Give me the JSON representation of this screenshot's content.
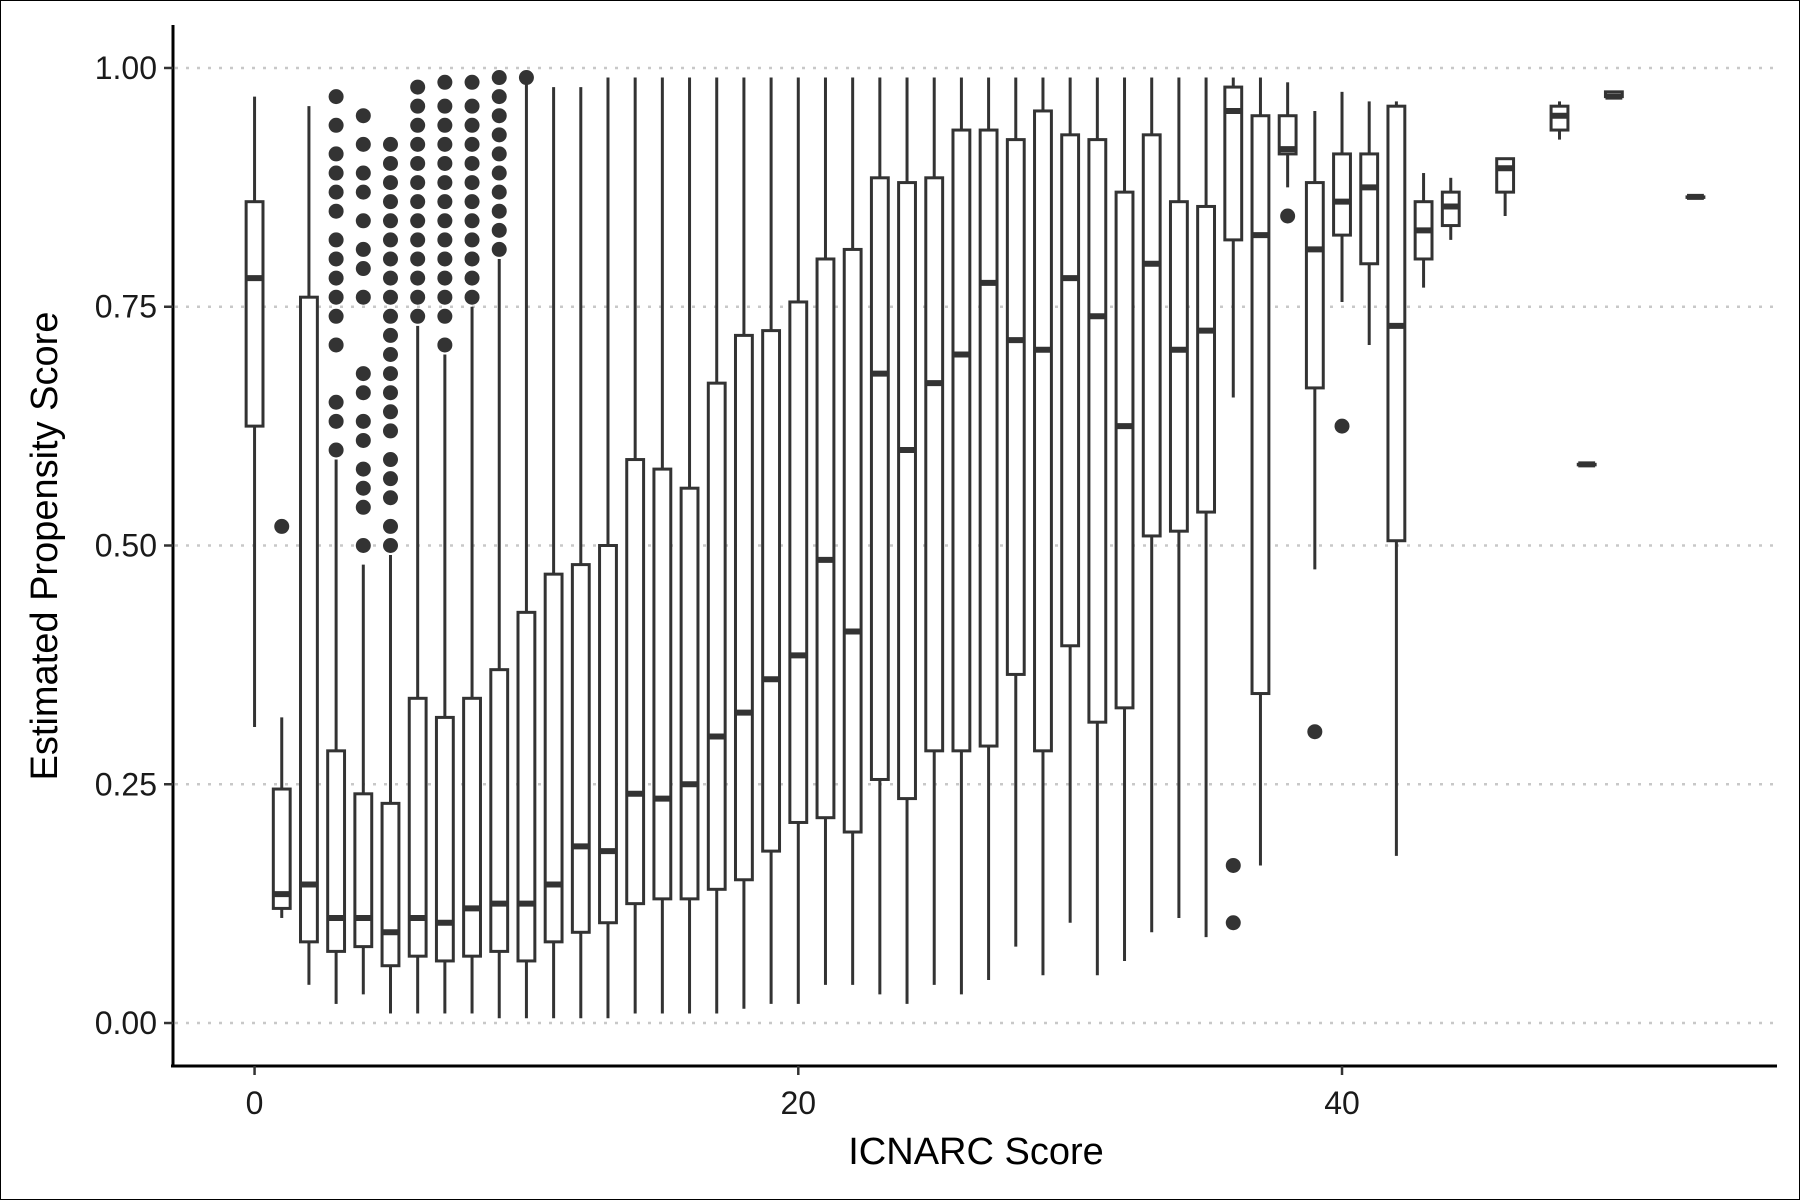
{
  "chart_data": {
    "type": "boxplot",
    "title": "",
    "xlabel": "ICNARC Score",
    "ylabel": "Estimated Propensity Score",
    "xlim": [
      -3,
      56
    ],
    "ylim": [
      -0.045,
      1.045
    ],
    "x_ticks": [
      0,
      20,
      40
    ],
    "x_tick_labels": [
      "0",
      "20",
      "40"
    ],
    "y_ticks": [
      0,
      0.25,
      0.5,
      0.75,
      1.0
    ],
    "y_tick_labels": [
      "0.00",
      "0.25",
      "0.50",
      "0.75",
      "1.00"
    ],
    "grid": "horizontal dotted major lines",
    "legend": "none",
    "box_width": 0.62,
    "colors": {
      "box_line": "#333333",
      "box_fill": "#ffffff",
      "grid": "#c8c8c8",
      "axis": "#000000"
    },
    "boxes": [
      {
        "x": 0,
        "min": 0.31,
        "q1": 0.625,
        "median": 0.78,
        "q3": 0.86,
        "max": 0.97,
        "outliers": []
      },
      {
        "x": 1,
        "min": 0.11,
        "q1": 0.12,
        "median": 0.135,
        "q3": 0.245,
        "max": 0.32,
        "outliers": [
          0.52
        ]
      },
      {
        "x": 2,
        "min": 0.04,
        "q1": 0.085,
        "median": 0.145,
        "q3": 0.76,
        "max": 0.96,
        "outliers": []
      },
      {
        "x": 3,
        "min": 0.02,
        "q1": 0.075,
        "median": 0.11,
        "q3": 0.285,
        "max": 0.59,
        "outliers": [
          0.6,
          0.63,
          0.65,
          0.71,
          0.74,
          0.76,
          0.78,
          0.8,
          0.82,
          0.85,
          0.87,
          0.89,
          0.91,
          0.94,
          0.97
        ]
      },
      {
        "x": 4,
        "min": 0.03,
        "q1": 0.08,
        "median": 0.11,
        "q3": 0.24,
        "max": 0.48,
        "outliers": [
          0.5,
          0.54,
          0.56,
          0.58,
          0.61,
          0.63,
          0.66,
          0.68,
          0.76,
          0.79,
          0.81,
          0.84,
          0.87,
          0.89,
          0.92,
          0.95
        ]
      },
      {
        "x": 5,
        "min": 0.01,
        "q1": 0.06,
        "median": 0.095,
        "q3": 0.23,
        "max": 0.49,
        "outliers": [
          0.5,
          0.52,
          0.55,
          0.57,
          0.59,
          0.62,
          0.64,
          0.66,
          0.68,
          0.7,
          0.72,
          0.74,
          0.76,
          0.78,
          0.8,
          0.82,
          0.84,
          0.86,
          0.88,
          0.9,
          0.92
        ]
      },
      {
        "x": 6,
        "min": 0.01,
        "q1": 0.07,
        "median": 0.11,
        "q3": 0.34,
        "max": 0.73,
        "outliers": [
          0.74,
          0.76,
          0.78,
          0.8,
          0.82,
          0.84,
          0.86,
          0.88,
          0.9,
          0.92,
          0.94,
          0.96,
          0.98
        ]
      },
      {
        "x": 7,
        "min": 0.01,
        "q1": 0.065,
        "median": 0.105,
        "q3": 0.32,
        "max": 0.7,
        "outliers": [
          0.71,
          0.74,
          0.76,
          0.78,
          0.8,
          0.82,
          0.84,
          0.86,
          0.88,
          0.9,
          0.92,
          0.94,
          0.96,
          0.985
        ]
      },
      {
        "x": 8,
        "min": 0.01,
        "q1": 0.07,
        "median": 0.12,
        "q3": 0.34,
        "max": 0.75,
        "outliers": [
          0.76,
          0.78,
          0.8,
          0.82,
          0.84,
          0.86,
          0.88,
          0.9,
          0.92,
          0.94,
          0.96,
          0.985
        ]
      },
      {
        "x": 9,
        "min": 0.005,
        "q1": 0.075,
        "median": 0.125,
        "q3": 0.37,
        "max": 0.8,
        "outliers": [
          0.81,
          0.83,
          0.85,
          0.87,
          0.89,
          0.91,
          0.93,
          0.95,
          0.97,
          0.99
        ]
      },
      {
        "x": 10,
        "min": 0.005,
        "q1": 0.065,
        "median": 0.125,
        "q3": 0.43,
        "max": 0.985,
        "outliers": [
          0.99
        ]
      },
      {
        "x": 11,
        "min": 0.005,
        "q1": 0.085,
        "median": 0.145,
        "q3": 0.47,
        "max": 0.98,
        "outliers": []
      },
      {
        "x": 12,
        "min": 0.005,
        "q1": 0.095,
        "median": 0.185,
        "q3": 0.48,
        "max": 0.98,
        "outliers": []
      },
      {
        "x": 13,
        "min": 0.005,
        "q1": 0.105,
        "median": 0.18,
        "q3": 0.5,
        "max": 0.99,
        "outliers": []
      },
      {
        "x": 14,
        "min": 0.01,
        "q1": 0.125,
        "median": 0.24,
        "q3": 0.59,
        "max": 0.99,
        "outliers": []
      },
      {
        "x": 15,
        "min": 0.01,
        "q1": 0.13,
        "median": 0.235,
        "q3": 0.58,
        "max": 0.99,
        "outliers": []
      },
      {
        "x": 16,
        "min": 0.01,
        "q1": 0.13,
        "median": 0.25,
        "q3": 0.56,
        "max": 0.99,
        "outliers": []
      },
      {
        "x": 17,
        "min": 0.01,
        "q1": 0.14,
        "median": 0.3,
        "q3": 0.67,
        "max": 0.99,
        "outliers": []
      },
      {
        "x": 18,
        "min": 0.015,
        "q1": 0.15,
        "median": 0.325,
        "q3": 0.72,
        "max": 0.99,
        "outliers": []
      },
      {
        "x": 19,
        "min": 0.02,
        "q1": 0.18,
        "median": 0.36,
        "q3": 0.725,
        "max": 0.99,
        "outliers": []
      },
      {
        "x": 20,
        "min": 0.02,
        "q1": 0.21,
        "median": 0.385,
        "q3": 0.755,
        "max": 0.99,
        "outliers": []
      },
      {
        "x": 21,
        "min": 0.04,
        "q1": 0.215,
        "median": 0.485,
        "q3": 0.8,
        "max": 0.99,
        "outliers": []
      },
      {
        "x": 22,
        "min": 0.04,
        "q1": 0.2,
        "median": 0.41,
        "q3": 0.81,
        "max": 0.99,
        "outliers": []
      },
      {
        "x": 23,
        "min": 0.03,
        "q1": 0.255,
        "median": 0.68,
        "q3": 0.885,
        "max": 0.99,
        "outliers": []
      },
      {
        "x": 24,
        "min": 0.02,
        "q1": 0.235,
        "median": 0.6,
        "q3": 0.88,
        "max": 0.99,
        "outliers": []
      },
      {
        "x": 25,
        "min": 0.04,
        "q1": 0.285,
        "median": 0.67,
        "q3": 0.885,
        "max": 0.99,
        "outliers": []
      },
      {
        "x": 26,
        "min": 0.03,
        "q1": 0.285,
        "median": 0.7,
        "q3": 0.935,
        "max": 0.99,
        "outliers": []
      },
      {
        "x": 27,
        "min": 0.045,
        "q1": 0.29,
        "median": 0.775,
        "q3": 0.935,
        "max": 0.99,
        "outliers": []
      },
      {
        "x": 28,
        "min": 0.08,
        "q1": 0.365,
        "median": 0.715,
        "q3": 0.925,
        "max": 0.99,
        "outliers": []
      },
      {
        "x": 29,
        "min": 0.05,
        "q1": 0.285,
        "median": 0.705,
        "q3": 0.955,
        "max": 0.99,
        "outliers": []
      },
      {
        "x": 30,
        "min": 0.105,
        "q1": 0.395,
        "median": 0.78,
        "q3": 0.93,
        "max": 0.99,
        "outliers": []
      },
      {
        "x": 31,
        "min": 0.05,
        "q1": 0.315,
        "median": 0.74,
        "q3": 0.925,
        "max": 0.99,
        "outliers": []
      },
      {
        "x": 32,
        "min": 0.065,
        "q1": 0.33,
        "median": 0.625,
        "q3": 0.87,
        "max": 0.99,
        "outliers": []
      },
      {
        "x": 33,
        "min": 0.095,
        "q1": 0.51,
        "median": 0.795,
        "q3": 0.93,
        "max": 0.99,
        "outliers": []
      },
      {
        "x": 34,
        "min": 0.11,
        "q1": 0.515,
        "median": 0.705,
        "q3": 0.86,
        "max": 0.99,
        "outliers": []
      },
      {
        "x": 35,
        "min": 0.09,
        "q1": 0.535,
        "median": 0.725,
        "q3": 0.855,
        "max": 0.99,
        "outliers": []
      },
      {
        "x": 36,
        "min": 0.655,
        "q1": 0.82,
        "median": 0.955,
        "q3": 0.98,
        "max": 0.99,
        "outliers": [
          0.165,
          0.105
        ]
      },
      {
        "x": 37,
        "min": 0.165,
        "q1": 0.345,
        "median": 0.825,
        "q3": 0.95,
        "max": 0.99,
        "outliers": []
      },
      {
        "x": 38,
        "min": 0.875,
        "q1": 0.91,
        "median": 0.915,
        "q3": 0.95,
        "max": 0.985,
        "outliers": [
          0.845
        ]
      },
      {
        "x": 39,
        "min": 0.475,
        "q1": 0.665,
        "median": 0.81,
        "q3": 0.88,
        "max": 0.955,
        "outliers": [
          0.305
        ]
      },
      {
        "x": 40,
        "min": 0.755,
        "q1": 0.825,
        "median": 0.86,
        "q3": 0.91,
        "max": 0.975,
        "outliers": [
          0.625
        ]
      },
      {
        "x": 41,
        "min": 0.71,
        "q1": 0.795,
        "median": 0.875,
        "q3": 0.91,
        "max": 0.965,
        "outliers": []
      },
      {
        "x": 42,
        "min": 0.175,
        "q1": 0.505,
        "median": 0.73,
        "q3": 0.96,
        "max": 0.965,
        "outliers": []
      },
      {
        "x": 43,
        "min": 0.77,
        "q1": 0.8,
        "median": 0.83,
        "q3": 0.86,
        "max": 0.89,
        "outliers": []
      },
      {
        "x": 44,
        "min": 0.82,
        "q1": 0.835,
        "median": 0.855,
        "q3": 0.87,
        "max": 0.885,
        "outliers": []
      },
      {
        "x": 46,
        "min": 0.845,
        "q1": 0.87,
        "median": 0.895,
        "q3": 0.905,
        "max": 0.905,
        "outliers": []
      },
      {
        "x": 48,
        "min": 0.925,
        "q1": 0.935,
        "median": 0.95,
        "q3": 0.96,
        "max": 0.965,
        "outliers": []
      },
      {
        "x": 49,
        "min": 0.585,
        "q1": 0.585,
        "median": 0.585,
        "q3": 0.585,
        "max": 0.585,
        "outliers": []
      },
      {
        "x": 50,
        "min": 0.97,
        "q1": 0.97,
        "median": 0.97,
        "q3": 0.975,
        "max": 0.975,
        "outliers": []
      },
      {
        "x": 53,
        "min": 0.865,
        "q1": 0.865,
        "median": 0.865,
        "q3": 0.865,
        "max": 0.865,
        "outliers": []
      }
    ]
  }
}
